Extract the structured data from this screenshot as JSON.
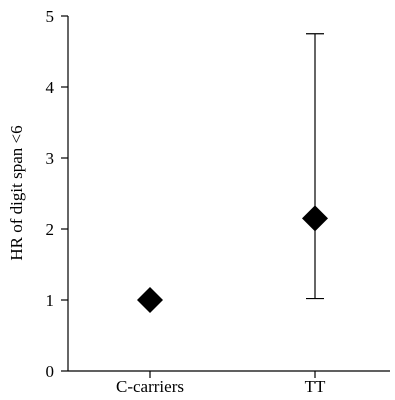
{
  "chart_data": {
    "type": "scatter",
    "title": "",
    "xlabel": "",
    "ylabel": "HR of digit span <6",
    "categories": [
      "C-carriers",
      "TT"
    ],
    "series": [
      {
        "marker": "diamond",
        "color": "#000000",
        "points": [
          {
            "category": "C-carriers",
            "y": 1.0,
            "error_low": null,
            "error_high": null
          },
          {
            "category": "TT",
            "y": 2.15,
            "error_low": 1.02,
            "error_high": 4.75
          }
        ]
      }
    ],
    "ylim": [
      0,
      5
    ],
    "yticks": [
      "0",
      "1",
      "2",
      "3",
      "4",
      "5"
    ],
    "grid": false,
    "legend": "none"
  }
}
